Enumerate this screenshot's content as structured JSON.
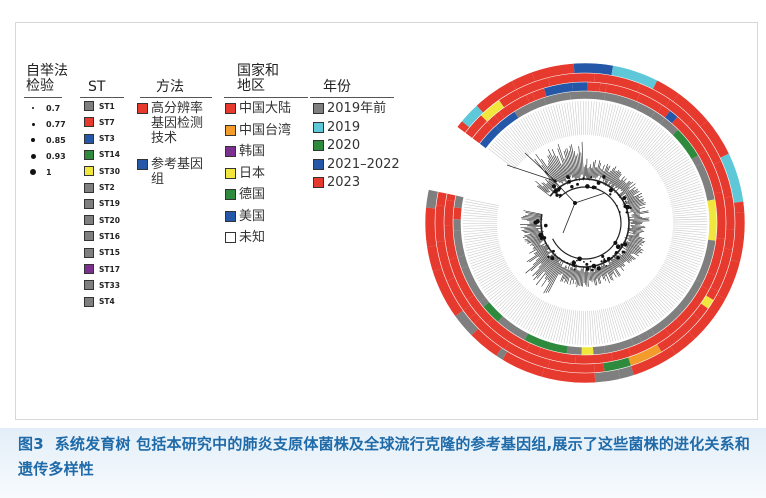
{
  "legends": {
    "bootstrap": {
      "title": "自举法检验",
      "items": [
        {
          "label": "0.7",
          "size": 2
        },
        {
          "label": "0.77",
          "size": 3
        },
        {
          "label": "0.85",
          "size": 4
        },
        {
          "label": "0.93",
          "size": 5
        },
        {
          "label": "1",
          "size": 6
        }
      ]
    },
    "st": {
      "title": "ST",
      "items": [
        {
          "label": "ST1",
          "color": "#7f7f7f"
        },
        {
          "label": "ST7",
          "color": "#e63a2e"
        },
        {
          "label": "ST3",
          "color": "#2457a8"
        },
        {
          "label": "ST14",
          "color": "#2e8b3d"
        },
        {
          "label": "ST30",
          "color": "#f1e63d"
        },
        {
          "label": "ST2",
          "color": "#7f7f7f"
        },
        {
          "label": "ST19",
          "color": "#7f7f7f"
        },
        {
          "label": "ST20",
          "color": "#7f7f7f"
        },
        {
          "label": "ST16",
          "color": "#7f7f7f"
        },
        {
          "label": "ST15",
          "color": "#7f7f7f"
        },
        {
          "label": "ST17",
          "color": "#7b2f8f"
        },
        {
          "label": "ST33",
          "color": "#7f7f7f"
        },
        {
          "label": "ST4",
          "color": "#7f7f7f"
        }
      ]
    },
    "method": {
      "title": "方法",
      "items": [
        {
          "label": "高分辨率基因检测技术",
          "color": "#e63a2e"
        },
        {
          "label": "参考基因组",
          "color": "#2457a8"
        }
      ]
    },
    "region": {
      "title": "国家和地区",
      "items": [
        {
          "label": "中国大陆",
          "color": "#e63a2e"
        },
        {
          "label": "中国台湾",
          "color": "#f39b2b"
        },
        {
          "label": "韩国",
          "color": "#7b2f8f"
        },
        {
          "label": "日本",
          "color": "#f1e63d"
        },
        {
          "label": "德国",
          "color": "#2e8b3d"
        },
        {
          "label": "美国",
          "color": "#2457a8"
        },
        {
          "label": "未知",
          "color": "#ffffff"
        }
      ]
    },
    "year": {
      "title": "年份",
      "items": [
        {
          "label": "2019年前",
          "color": "#7f7f7f"
        },
        {
          "label": "2019",
          "color": "#5ec8d8"
        },
        {
          "label": "2020",
          "color": "#2e8b3d"
        },
        {
          "label": "2021–2022",
          "color": "#2457a8"
        },
        {
          "label": "2023",
          "color": "#e63a2e"
        }
      ]
    }
  },
  "caption": {
    "label": "图3",
    "text": "系统发育树 包括本研究中的肺炎支原体菌株及全球流行克隆的参考基因组,展示了这些菌株的进化关系和遗传多样性"
  }
}
